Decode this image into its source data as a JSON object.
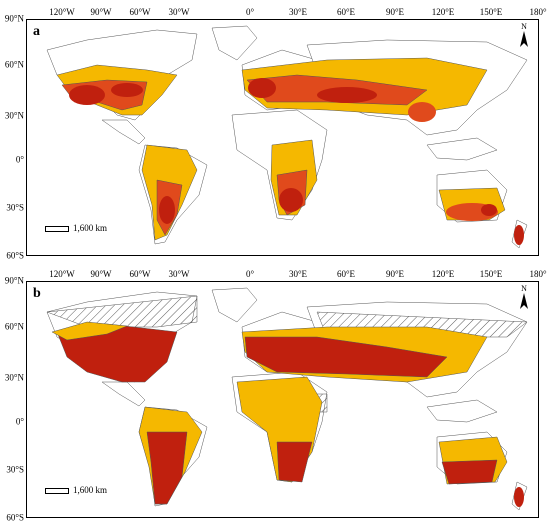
{
  "colors": {
    "high": "#c0200e",
    "medium": "#e04a1c",
    "low": "#f5b800",
    "land": "#ffffff",
    "border": "#555555",
    "hatch": "#333333"
  },
  "longitude_labels": [
    "120°W",
    "90°W",
    "60°W",
    "30°W",
    "0°",
    "30°E",
    "60°E",
    "90°E",
    "120°E",
    "150°E",
    "180°"
  ],
  "latitude_labels": [
    "90°N",
    "60°N",
    "30°N",
    "0°",
    "30°S",
    "60°S"
  ],
  "panels": [
    {
      "letter": "a",
      "scale_label": "1,600 km",
      "north_label": "N"
    },
    {
      "letter": "b",
      "scale_label": "1,600 km",
      "north_label": "N"
    }
  ],
  "icons": {
    "north_arrow": "north-arrow-icon"
  }
}
